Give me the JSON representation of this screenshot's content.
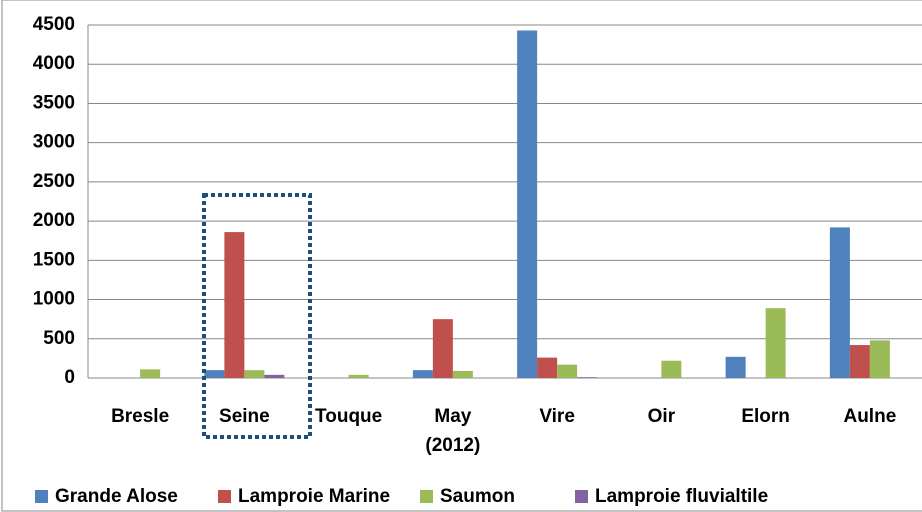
{
  "chart_data": {
    "type": "bar",
    "categories": [
      "Bresle",
      "Seine",
      "Touque",
      "May (2012)",
      "Vire",
      "Oir",
      "Elorn",
      "Aulne"
    ],
    "series": [
      {
        "name": "Grande Alose",
        "color": "#4f81bd",
        "values": [
          0,
          100,
          0,
          100,
          4430,
          0,
          270,
          1920
        ]
      },
      {
        "name": "Lamproie Marine",
        "color": "#c0504d",
        "values": [
          0,
          1860,
          0,
          750,
          260,
          0,
          0,
          420
        ]
      },
      {
        "name": "Saumon",
        "color": "#9bbb59",
        "values": [
          110,
          100,
          40,
          90,
          170,
          220,
          890,
          480
        ]
      },
      {
        "name": "Lamproie fluvialtile",
        "color": "#8064a2",
        "values": [
          0,
          40,
          0,
          0,
          10,
          0,
          0,
          0
        ]
      }
    ],
    "ylim": [
      0,
      4500
    ],
    "yticks": [
      0,
      500,
      1000,
      1500,
      2000,
      2500,
      3000,
      3500,
      4000,
      4500
    ],
    "grid": true,
    "legend": "bottom"
  }
}
